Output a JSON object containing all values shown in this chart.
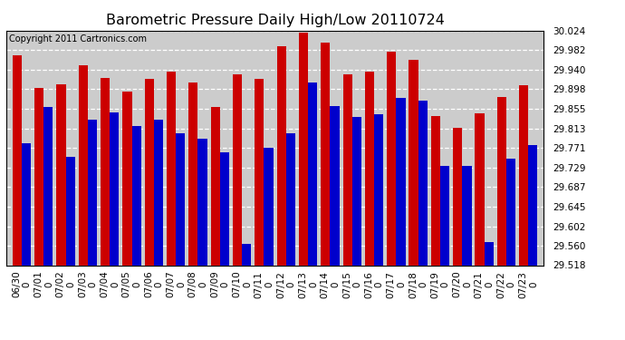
{
  "title": "Barometric Pressure Daily High/Low 20110724",
  "copyright": "Copyright 2011 Cartronics.com",
  "categories": [
    "06/30",
    "07/01",
    "07/02",
    "07/03",
    "07/04",
    "07/05",
    "07/06",
    "07/07",
    "07/08",
    "07/09",
    "07/10",
    "07/11",
    "07/12",
    "07/13",
    "07/14",
    "07/15",
    "07/16",
    "07/17",
    "07/18",
    "07/19",
    "07/20",
    "07/21",
    "07/22",
    "07/23"
  ],
  "highs": [
    29.97,
    29.9,
    29.908,
    29.95,
    29.922,
    29.893,
    29.92,
    29.935,
    29.912,
    29.86,
    29.93,
    29.92,
    29.99,
    30.02,
    29.998,
    29.93,
    29.935,
    29.978,
    29.96,
    29.84,
    29.815,
    29.845,
    29.88,
    29.907
  ],
  "lows": [
    29.782,
    29.86,
    29.752,
    29.832,
    29.848,
    29.818,
    29.832,
    29.803,
    29.79,
    29.762,
    29.564,
    29.772,
    29.802,
    29.912,
    29.862,
    29.838,
    29.843,
    29.878,
    29.872,
    29.733,
    29.732,
    29.568,
    29.748,
    29.778
  ],
  "high_color": "#cc0000",
  "low_color": "#0000cc",
  "bg_color": "#ffffff",
  "plot_bg_color": "#cccccc",
  "grid_color": "#ffffff",
  "border_color": "#000000",
  "ymin": 29.518,
  "ymax": 30.024,
  "yticks": [
    29.518,
    29.56,
    29.602,
    29.645,
    29.687,
    29.729,
    29.771,
    29.813,
    29.855,
    29.898,
    29.94,
    29.982,
    30.024
  ],
  "title_fontsize": 11.5,
  "tick_fontsize": 7.5,
  "copyright_fontsize": 7
}
